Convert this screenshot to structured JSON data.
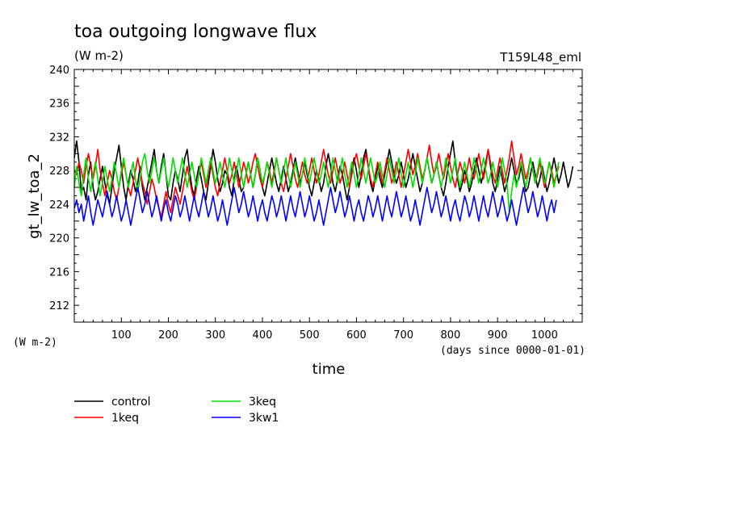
{
  "chart_data": {
    "type": "line",
    "title": "toa outgoing longwave flux",
    "units": "(W m-2)",
    "experiment": "T159L48_eml",
    "ylabel": "gt_lw_toa_2",
    "yunits": "(W m-2)",
    "xlabel": "time",
    "xunits": "(days since 0000-01-01)",
    "xlim": [
      0,
      1080
    ],
    "ylim": [
      210,
      240
    ],
    "xticks": [
      100,
      200,
      300,
      400,
      500,
      600,
      700,
      800,
      900,
      1000
    ],
    "yticks": [
      212,
      216,
      220,
      224,
      228,
      232,
      236,
      240
    ],
    "grid": false,
    "legend_position": "bottom-left",
    "x_step_days": 5,
    "series": [
      {
        "name": "control",
        "color": "#000000",
        "values": [
          229.5,
          231.5,
          229.0,
          225.5,
          226.0,
          224.5,
          227.5,
          229.0,
          226.0,
          224.5,
          225.5,
          227.0,
          228.5,
          226.5,
          225.0,
          224.0,
          226.0,
          228.0,
          229.5,
          231.0,
          228.5,
          226.0,
          224.5,
          226.5,
          228.0,
          227.0,
          225.5,
          226.5,
          228.5,
          226.0,
          224.5,
          226.0,
          227.5,
          229.0,
          230.5,
          228.0,
          226.5,
          228.5,
          230.0,
          227.5,
          225.0,
          224.5,
          226.5,
          228.0,
          227.0,
          225.5,
          227.5,
          229.5,
          230.5,
          228.0,
          226.0,
          225.0,
          227.0,
          228.5,
          227.0,
          225.5,
          224.5,
          226.5,
          228.5,
          230.5,
          229.0,
          227.0,
          225.5,
          226.5,
          228.0,
          227.5,
          226.0,
          225.0,
          227.0,
          228.5,
          227.0,
          225.5,
          226.0,
          227.5,
          229.0,
          227.5,
          226.0,
          227.5,
          229.5,
          228.0,
          226.0,
          225.0,
          226.5,
          228.0,
          229.5,
          228.0,
          226.5,
          225.5,
          227.0,
          228.5,
          227.0,
          225.5,
          226.5,
          228.0,
          229.5,
          228.0,
          226.5,
          227.5,
          229.0,
          227.5,
          226.0,
          225.0,
          226.5,
          228.0,
          227.0,
          225.5,
          226.5,
          228.5,
          230.0,
          228.5,
          226.5,
          225.5,
          227.0,
          228.5,
          227.5,
          226.0,
          224.5,
          226.0,
          228.0,
          229.5,
          228.0,
          226.0,
          227.5,
          229.5,
          230.5,
          228.5,
          226.5,
          225.5,
          227.0,
          228.5,
          227.0,
          226.0,
          227.5,
          229.0,
          230.5,
          229.0,
          227.5,
          226.5,
          227.5,
          229.0,
          227.5,
          226.0,
          227.0,
          228.5,
          230.0,
          228.5,
          227.0,
          225.5,
          226.5,
          228.0,
          229.5,
          228.0,
          226.5,
          227.5,
          229.0,
          227.5,
          226.0,
          225.0,
          226.5,
          228.5,
          230.0,
          231.5,
          229.0,
          227.0,
          225.5,
          226.5,
          228.0,
          227.0,
          225.5,
          226.5,
          228.0,
          229.5,
          228.0,
          226.5,
          227.5,
          229.0,
          230.5,
          228.5,
          226.5,
          225.5,
          227.0,
          228.5,
          227.0,
          225.5,
          226.5,
          228.0,
          229.5,
          228.0,
          226.5,
          227.0,
          228.5,
          227.0,
          225.5,
          226.0,
          227.5,
          229.0,
          227.5,
          226.0,
          227.0,
          228.5,
          227.0,
          225.5,
          226.5,
          228.0,
          229.5,
          228.0,
          226.5,
          227.5,
          229.0,
          227.5,
          226.0,
          227.0,
          228.5
        ]
      },
      {
        "name": "1keq",
        "color": "#ff0000",
        "values": [
          228.0,
          227.5,
          229.0,
          228.0,
          226.5,
          228.5,
          230.0,
          228.5,
          227.0,
          228.5,
          230.5,
          228.0,
          226.5,
          225.0,
          226.5,
          228.0,
          227.0,
          225.5,
          224.5,
          226.0,
          227.5,
          229.0,
          227.5,
          226.0,
          225.0,
          226.5,
          228.0,
          229.5,
          228.0,
          226.5,
          225.5,
          224.0,
          225.5,
          227.0,
          226.0,
          224.5,
          223.5,
          222.5,
          224.0,
          225.5,
          224.0,
          223.0,
          224.5,
          226.0,
          225.0,
          224.0,
          225.5,
          227.0,
          228.5,
          227.0,
          225.5,
          224.5,
          226.0,
          227.5,
          229.0,
          227.5,
          226.0,
          227.5,
          229.0,
          227.5,
          226.0,
          225.0,
          226.5,
          228.0,
          229.5,
          228.0,
          226.5,
          227.5,
          229.0,
          227.5,
          226.0,
          227.5,
          229.0,
          228.0,
          226.5,
          227.5,
          229.0,
          230.0,
          228.5,
          227.0,
          226.0,
          227.5,
          229.0,
          228.0,
          226.5,
          228.0,
          229.5,
          228.0,
          226.5,
          225.5,
          227.0,
          228.5,
          230.0,
          228.5,
          227.0,
          226.0,
          227.5,
          229.0,
          227.5,
          226.5,
          228.0,
          229.5,
          228.0,
          226.5,
          227.5,
          229.0,
          230.5,
          229.0,
          227.5,
          226.5,
          228.0,
          229.5,
          228.0,
          226.5,
          227.5,
          229.0,
          227.5,
          226.0,
          227.5,
          229.0,
          230.0,
          228.5,
          227.0,
          228.5,
          230.0,
          228.5,
          227.0,
          226.0,
          227.5,
          229.0,
          228.0,
          226.5,
          228.0,
          229.5,
          228.0,
          226.5,
          227.5,
          229.0,
          227.5,
          226.0,
          227.5,
          229.0,
          230.5,
          229.0,
          227.5,
          228.5,
          230.0,
          228.5,
          227.0,
          228.0,
          229.5,
          231.0,
          229.0,
          227.5,
          228.5,
          230.0,
          228.5,
          227.0,
          228.5,
          230.0,
          228.5,
          227.0,
          226.0,
          227.5,
          229.0,
          228.0,
          226.5,
          228.0,
          229.5,
          228.0,
          227.0,
          228.5,
          230.0,
          228.5,
          227.0,
          228.5,
          230.5,
          229.0,
          227.5,
          226.5,
          228.0,
          229.5,
          228.0,
          226.5,
          228.0,
          229.5,
          231.5,
          229.5,
          227.5,
          228.5,
          230.0,
          228.5,
          227.0,
          228.0,
          229.5,
          228.0,
          226.5,
          227.5,
          229.0,
          227.5,
          226.0,
          227.5,
          229.0,
          228.0,
          226.5,
          227.5,
          228.5
        ]
      },
      {
        "name": "3keq",
        "color": "#00e000",
        "values": [
          226.0,
          228.5,
          226.5,
          225.0,
          227.5,
          229.5,
          227.0,
          225.5,
          227.5,
          229.0,
          227.0,
          225.0,
          226.5,
          228.5,
          227.0,
          225.5,
          227.0,
          229.0,
          227.5,
          226.0,
          228.0,
          229.5,
          227.5,
          226.0,
          227.5,
          229.0,
          227.0,
          225.5,
          227.0,
          229.0,
          230.0,
          228.0,
          226.5,
          228.0,
          229.5,
          228.0,
          226.5,
          228.0,
          229.5,
          227.5,
          226.0,
          227.5,
          229.5,
          228.0,
          226.5,
          228.0,
          229.5,
          227.5,
          226.0,
          227.5,
          229.0,
          227.5,
          226.0,
          227.5,
          229.5,
          228.0,
          226.5,
          228.0,
          229.5,
          228.0,
          226.5,
          227.5,
          229.0,
          227.5,
          226.0,
          227.5,
          229.5,
          228.0,
          226.5,
          228.0,
          229.5,
          227.5,
          226.0,
          227.5,
          229.0,
          227.5,
          226.0,
          227.5,
          229.5,
          228.0,
          226.5,
          227.5,
          229.0,
          227.5,
          226.0,
          227.5,
          229.5,
          228.0,
          226.5,
          228.0,
          229.5,
          227.5,
          226.0,
          227.5,
          229.0,
          227.5,
          226.0,
          227.5,
          229.5,
          228.0,
          226.5,
          228.0,
          229.5,
          228.0,
          226.5,
          227.5,
          229.0,
          227.5,
          226.0,
          227.5,
          229.5,
          228.0,
          226.5,
          228.0,
          229.5,
          227.5,
          226.0,
          227.5,
          229.0,
          227.5,
          226.0,
          227.5,
          229.5,
          228.0,
          226.5,
          228.0,
          229.5,
          228.0,
          226.5,
          227.5,
          229.0,
          227.5,
          226.0,
          227.5,
          229.5,
          228.0,
          226.5,
          228.0,
          229.5,
          227.5,
          226.0,
          227.5,
          229.0,
          227.5,
          226.0,
          227.5,
          229.5,
          228.0,
          226.5,
          228.0,
          229.5,
          228.0,
          226.5,
          227.5,
          229.0,
          227.5,
          226.0,
          227.5,
          229.5,
          228.0,
          226.5,
          228.0,
          229.5,
          227.5,
          226.0,
          227.5,
          229.0,
          227.5,
          226.0,
          227.5,
          229.5,
          228.0,
          226.5,
          228.0,
          229.5,
          228.0,
          226.5,
          227.5,
          229.0,
          227.5,
          226.0,
          227.5,
          229.5,
          228.0,
          226.5,
          223.0,
          225.5,
          227.5,
          226.0,
          227.5,
          229.0,
          227.5,
          226.0,
          227.5,
          229.5,
          228.0,
          226.5,
          228.0,
          229.5,
          228.0,
          226.5,
          227.5,
          229.0,
          227.5,
          226.0,
          227.5,
          229.0
        ]
      },
      {
        "name": "3kw1",
        "color": "#0000ff",
        "values": [
          223.5,
          224.5,
          223.0,
          224.0,
          222.0,
          223.5,
          225.0,
          223.0,
          221.5,
          223.0,
          224.5,
          223.5,
          222.5,
          224.0,
          225.5,
          224.0,
          222.5,
          223.5,
          225.0,
          223.5,
          222.0,
          223.0,
          224.5,
          223.0,
          221.5,
          223.0,
          224.5,
          226.0,
          224.5,
          223.0,
          224.0,
          225.5,
          224.0,
          222.5,
          223.5,
          225.0,
          223.5,
          222.0,
          223.5,
          224.5,
          223.0,
          222.0,
          223.5,
          225.0,
          224.0,
          222.5,
          223.5,
          225.0,
          223.5,
          222.0,
          223.5,
          225.0,
          223.5,
          222.5,
          224.0,
          225.5,
          224.0,
          222.5,
          223.5,
          225.0,
          223.5,
          222.0,
          223.0,
          224.5,
          223.0,
          221.5,
          223.0,
          224.5,
          226.0,
          224.5,
          223.0,
          224.0,
          225.5,
          224.0,
          222.5,
          223.5,
          225.0,
          223.5,
          222.0,
          223.5,
          224.5,
          223.0,
          222.0,
          223.5,
          225.0,
          224.0,
          222.5,
          223.5,
          225.0,
          223.5,
          222.0,
          223.5,
          225.0,
          223.5,
          222.5,
          224.0,
          225.5,
          224.0,
          222.5,
          223.5,
          225.0,
          223.5,
          222.0,
          223.0,
          224.5,
          223.0,
          221.5,
          223.0,
          224.5,
          226.0,
          224.5,
          223.0,
          224.0,
          225.5,
          224.0,
          222.5,
          223.5,
          225.0,
          223.5,
          222.0,
          223.5,
          224.5,
          223.0,
          222.0,
          223.5,
          225.0,
          224.0,
          222.5,
          223.5,
          225.0,
          223.5,
          222.0,
          223.5,
          225.0,
          223.5,
          222.5,
          224.0,
          225.5,
          224.0,
          222.5,
          223.5,
          225.0,
          223.5,
          222.0,
          223.0,
          224.5,
          223.0,
          221.5,
          223.0,
          224.5,
          226.0,
          224.5,
          223.0,
          224.0,
          225.5,
          224.0,
          222.5,
          223.5,
          225.0,
          223.5,
          222.0,
          223.5,
          224.5,
          223.0,
          222.0,
          223.5,
          225.0,
          224.0,
          222.5,
          223.5,
          225.0,
          223.5,
          222.0,
          223.5,
          225.0,
          223.5,
          222.5,
          224.0,
          225.5,
          224.0,
          222.5,
          223.5,
          225.0,
          223.5,
          222.0,
          223.0,
          224.5,
          223.0,
          221.5,
          223.0,
          224.5,
          226.0,
          224.5,
          223.0,
          224.0,
          225.5,
          224.0,
          222.5,
          223.5,
          225.0,
          223.5,
          222.0,
          223.5,
          224.5,
          223.0,
          224.5
        ]
      }
    ]
  }
}
